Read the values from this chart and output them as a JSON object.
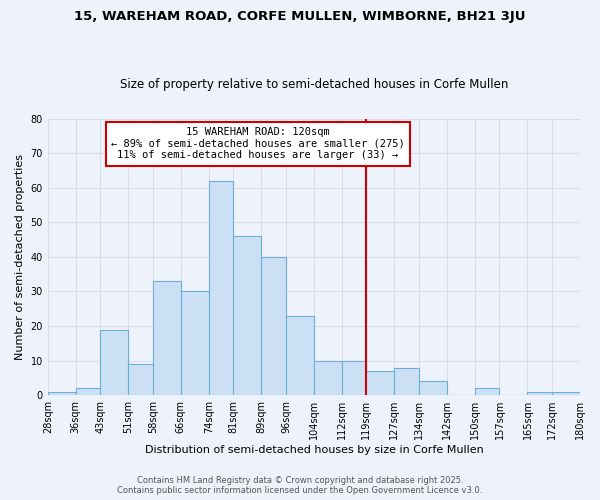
{
  "title": "15, WAREHAM ROAD, CORFE MULLEN, WIMBORNE, BH21 3JU",
  "subtitle": "Size of property relative to semi-detached houses in Corfe Mullen",
  "xlabel": "Distribution of semi-detached houses by size in Corfe Mullen",
  "ylabel": "Number of semi-detached properties",
  "bar_labels": [
    "28sqm",
    "36sqm",
    "43sqm",
    "51sqm",
    "58sqm",
    "66sqm",
    "74sqm",
    "81sqm",
    "89sqm",
    "96sqm",
    "104sqm",
    "112sqm",
    "119sqm",
    "127sqm",
    "134sqm",
    "142sqm",
    "150sqm",
    "157sqm",
    "165sqm",
    "172sqm",
    "180sqm"
  ],
  "bar_values": [
    1,
    2,
    19,
    9,
    33,
    30,
    62,
    46,
    40,
    23,
    10,
    10,
    7,
    8,
    4,
    0,
    2,
    0,
    1,
    1
  ],
  "bar_edges": [
    28,
    36,
    43,
    51,
    58,
    66,
    74,
    81,
    89,
    96,
    104,
    112,
    119,
    127,
    134,
    142,
    150,
    157,
    165,
    172,
    180
  ],
  "bar_color": "#cce0f5",
  "bar_edge_color": "#6baed6",
  "vline_x": 119,
  "vline_color": "#cc0000",
  "annotation_title": "15 WAREHAM ROAD: 120sqm",
  "annotation_line1": "← 89% of semi-detached houses are smaller (275)",
  "annotation_line2": "11% of semi-detached houses are larger (33) →",
  "annotation_box_color": "#ffffff",
  "annotation_box_edge": "#cc0000",
  "ylim": [
    0,
    80
  ],
  "yticks": [
    0,
    10,
    20,
    30,
    40,
    50,
    60,
    70,
    80
  ],
  "bg_color": "#eef2fa",
  "grid_color": "#d8dde8",
  "footer1": "Contains HM Land Registry data © Crown copyright and database right 2025.",
  "footer2": "Contains public sector information licensed under the Open Government Licence v3.0."
}
